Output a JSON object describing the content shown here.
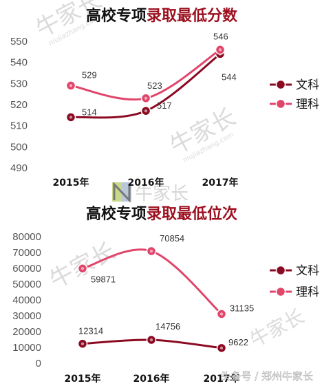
{
  "chart_data": [
    {
      "type": "line",
      "title_part1": "高校专项",
      "title_part2": "录取最低分数",
      "categories": [
        "2015年",
        "2016年",
        "2017年"
      ],
      "ylim": [
        490,
        550
      ],
      "yticks": [
        490,
        500,
        510,
        520,
        530,
        540,
        550
      ],
      "series": [
        {
          "name": "文科",
          "values": [
            514,
            517,
            544
          ],
          "color": "#8b0a22"
        },
        {
          "name": "理科",
          "values": [
            529,
            523,
            546
          ],
          "color": "#e0456a"
        }
      ],
      "legend": "right",
      "grid": false
    },
    {
      "type": "line",
      "title_part1": "高校专项",
      "title_part2": "录取最低位次",
      "categories": [
        "2015年",
        "2016年",
        "2017年"
      ],
      "ylim": [
        0,
        80000
      ],
      "yticks": [
        0,
        10000,
        20000,
        30000,
        40000,
        50000,
        60000,
        70000,
        80000
      ],
      "series": [
        {
          "name": "文科",
          "values": [
            12314,
            14756,
            9622
          ],
          "color": "#8b0a22"
        },
        {
          "name": "理科",
          "values": [
            59871,
            70854,
            31135
          ],
          "color": "#e0456a"
        }
      ],
      "legend": "right",
      "grid": false
    }
  ],
  "title_colors": {
    "part1": "#111111",
    "part2": "#9c0f1e"
  },
  "watermark": {
    "brand": "牛家长",
    "site": "niujiazhang.com"
  },
  "footer": "头条号 / 郑州牛家长"
}
